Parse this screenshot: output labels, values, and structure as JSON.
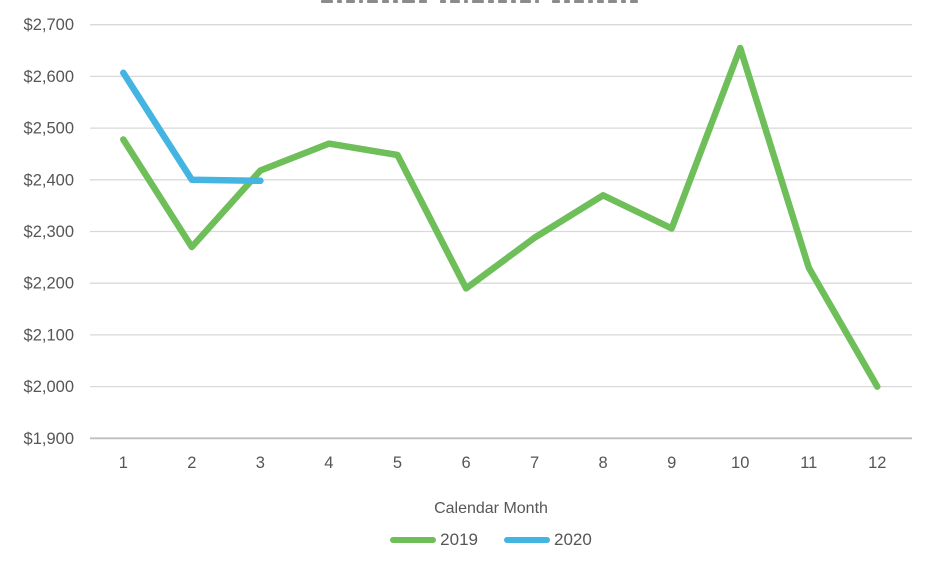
{
  "chart_data": {
    "type": "line",
    "title_clipped": true,
    "categories": [
      "1",
      "2",
      "3",
      "4",
      "5",
      "6",
      "7",
      "8",
      "9",
      "10",
      "11",
      "12"
    ],
    "series": [
      {
        "name": "2019",
        "color": "#6EBE59",
        "values": [
          2478,
          2270,
          2418,
          2470,
          2448,
          2190,
          2288,
          2370,
          2306,
          2655,
          2230,
          2000
        ]
      },
      {
        "name": "2020",
        "color": "#44B4E1",
        "values": [
          2607,
          2400,
          2398
        ]
      }
    ],
    "xlabel": "Calendar Month",
    "ylabel": "",
    "y_ticks": [
      1900,
      2000,
      2100,
      2200,
      2300,
      2400,
      2500,
      2600,
      2700
    ],
    "y_tick_labels": [
      "$1,900",
      "$2,000",
      "$2,100",
      "$2,200",
      "$2,300",
      "$2,400",
      "$2,500",
      "$2,600",
      "$2,700"
    ],
    "ylim": [
      1900,
      2700
    ],
    "grid": true,
    "legend_position": "bottom",
    "colors": {
      "gridline": "#D9D9D9",
      "axis_line": "#BFBFBF",
      "tick_text": "#565656"
    }
  },
  "legend": {
    "items": [
      {
        "label": "2019"
      },
      {
        "label": "2020"
      }
    ]
  }
}
